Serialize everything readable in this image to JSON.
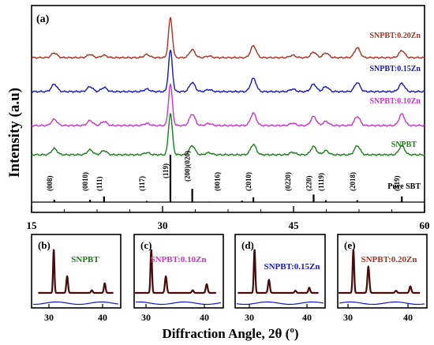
{
  "figure": {
    "ylabel": "Intensity (a.u)",
    "xlabel": "Diffraction Angle, 2θ (°)",
    "xlabel_parts": {
      "prefix": "Diffraction Angle, 2θ (",
      "degree": "o",
      "suffix": ")"
    }
  },
  "chart_data": [
    {
      "type": "line",
      "panel_label": "(a)",
      "xlim": [
        15,
        60
      ],
      "x_ticks": [
        15,
        30,
        45,
        60
      ],
      "y_ticks": [],
      "grid": false,
      "series": [
        {
          "name": "Pure SBT",
          "color": "#000000",
          "kind": "stick",
          "peaks": [
            [
              17.6,
              0.05
            ],
            [
              21.7,
              0.05
            ],
            [
              23.3,
              0.12
            ],
            [
              28.2,
              0.025
            ],
            [
              30.9,
              1.0
            ],
            [
              33.4,
              0.28
            ],
            [
              35.3,
              0.01
            ],
            [
              39.1,
              0.03
            ],
            [
              40.4,
              0.1
            ],
            [
              44.9,
              0.01
            ],
            [
              47.3,
              0.16
            ],
            [
              48.7,
              0.04
            ],
            [
              52.3,
              0.04
            ],
            [
              57.4,
              0.12
            ]
          ]
        },
        {
          "name": "SNPBT",
          "color": "#1a7f1a",
          "kind": "profile",
          "peaks": [
            [
              17.6,
              0.15
            ],
            [
              21.7,
              0.12
            ],
            [
              23.3,
              0.1
            ],
            [
              28.2,
              0.05
            ],
            [
              30.9,
              1.0
            ],
            [
              33.4,
              0.22
            ],
            [
              35.3,
              0.05
            ],
            [
              40.4,
              0.25
            ],
            [
              44.9,
              0.06
            ],
            [
              47.3,
              0.2
            ],
            [
              48.7,
              0.1
            ],
            [
              52.3,
              0.22
            ],
            [
              57.4,
              0.22
            ]
          ]
        },
        {
          "name": "SNPBT:0.10Zn",
          "color": "#cc33cc",
          "kind": "profile",
          "peaks": [
            [
              17.6,
              0.15
            ],
            [
              21.7,
              0.12
            ],
            [
              23.3,
              0.1
            ],
            [
              28.2,
              0.05
            ],
            [
              30.9,
              1.0
            ],
            [
              33.4,
              0.28
            ],
            [
              35.3,
              0.05
            ],
            [
              40.4,
              0.3
            ],
            [
              44.9,
              0.06
            ],
            [
              47.3,
              0.22
            ],
            [
              48.7,
              0.1
            ],
            [
              52.3,
              0.22
            ],
            [
              57.4,
              0.28
            ]
          ]
        },
        {
          "name": "SNPBT:0.15Zn",
          "color": "#1515cc",
          "kind": "profile",
          "peaks": [
            [
              17.6,
              0.18
            ],
            [
              21.7,
              0.12
            ],
            [
              23.3,
              0.1
            ],
            [
              28.2,
              0.06
            ],
            [
              30.9,
              1.0
            ],
            [
              33.4,
              0.22
            ],
            [
              35.3,
              0.05
            ],
            [
              40.4,
              0.32
            ],
            [
              44.9,
              0.06
            ],
            [
              47.3,
              0.18
            ],
            [
              48.7,
              0.12
            ],
            [
              52.3,
              0.22
            ],
            [
              57.4,
              0.2
            ]
          ]
        },
        {
          "name": "SNPBT:0.20Zn",
          "color": "#b03020",
          "kind": "profile",
          "peaks": [
            [
              17.6,
              0.12
            ],
            [
              21.7,
              0.08
            ],
            [
              23.3,
              0.06
            ],
            [
              28.2,
              0.08
            ],
            [
              30.9,
              1.0
            ],
            [
              33.4,
              0.2
            ],
            [
              35.3,
              0.04
            ],
            [
              40.4,
              0.3
            ],
            [
              44.9,
              0.06
            ],
            [
              47.3,
              0.14
            ],
            [
              48.7,
              0.12
            ],
            [
              52.3,
              0.25
            ],
            [
              57.4,
              0.18
            ]
          ]
        }
      ],
      "annotations": [
        {
          "text": "(008)",
          "x": 17.6
        },
        {
          "text": "(0010)",
          "x": 21.7
        },
        {
          "text": "(111)",
          "x": 23.3
        },
        {
          "text": "(117)",
          "x": 28.2
        },
        {
          "text": "(119)",
          "x": 30.9
        },
        {
          "text": "(200)(020)",
          "x": 33.4
        },
        {
          "text": "(0016)",
          "x": 36.8
        },
        {
          "text": "(2010)",
          "x": 40.4
        },
        {
          "text": "(0220)",
          "x": 44.9
        },
        {
          "text": "(220)",
          "x": 47.3
        },
        {
          "text": "(1119)",
          "x": 48.7
        },
        {
          "text": "(2018)",
          "x": 52.3
        },
        {
          "text": "(319)",
          "x": 57.4
        }
      ]
    },
    {
      "type": "line",
      "panel_label": "(b)",
      "legend": "SNPBT",
      "legend_color": "#1a7f1a",
      "xlim": [
        28,
        42
      ],
      "x_ticks": [
        30,
        40
      ],
      "peaks": [
        [
          30.9,
          1.0
        ],
        [
          33.4,
          0.38
        ],
        [
          38.0,
          0.06
        ],
        [
          40.4,
          0.22
        ]
      ]
    },
    {
      "type": "line",
      "panel_label": "(c)",
      "legend": "SNPBT:0.10Zn",
      "legend_color": "#cc33cc",
      "xlim": [
        28,
        42
      ],
      "x_ticks": [
        30,
        40
      ],
      "peaks": [
        [
          30.9,
          1.0
        ],
        [
          33.4,
          0.38
        ],
        [
          38.0,
          0.06
        ],
        [
          40.4,
          0.2
        ]
      ]
    },
    {
      "type": "line",
      "panel_label": "(d)",
      "legend": "SNPBT:0.15Zn",
      "legend_color": "#1515cc",
      "xlim": [
        28,
        42
      ],
      "x_ticks": [
        30,
        40
      ],
      "peaks": [
        [
          30.9,
          1.0
        ],
        [
          33.4,
          0.3
        ],
        [
          38.0,
          0.05
        ],
        [
          40.4,
          0.12
        ]
      ]
    },
    {
      "type": "line",
      "panel_label": "(e)",
      "legend": "SNPBT:0.20Zn",
      "legend_color": "#b03020",
      "xlim": [
        28,
        42
      ],
      "x_ticks": [
        30,
        40
      ],
      "peaks": [
        [
          30.9,
          1.0
        ],
        [
          33.4,
          0.6
        ],
        [
          38.0,
          0.05
        ],
        [
          40.4,
          0.15
        ]
      ]
    }
  ]
}
